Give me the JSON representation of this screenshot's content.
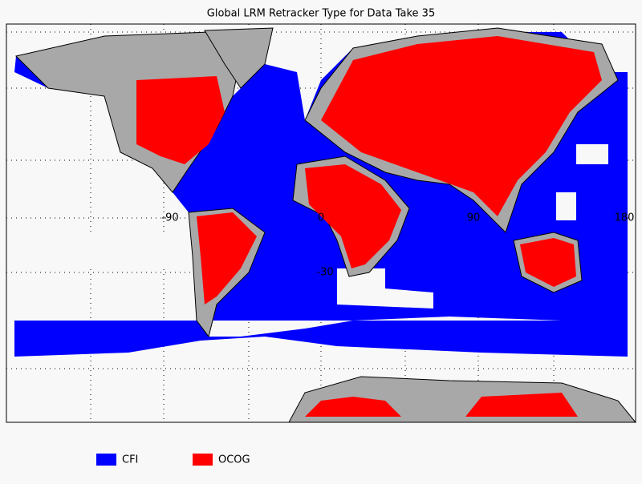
{
  "title": "Global LRM Retracker Type for Data Take 35",
  "longitude_labels": [
    "-90",
    "0",
    "90",
    "180"
  ],
  "latitude_labels": [
    "-30"
  ],
  "legend": [
    {
      "label": "CFI",
      "color": "#0000ff"
    },
    {
      "label": "OCOG",
      "color": "#ff0000"
    }
  ]
}
